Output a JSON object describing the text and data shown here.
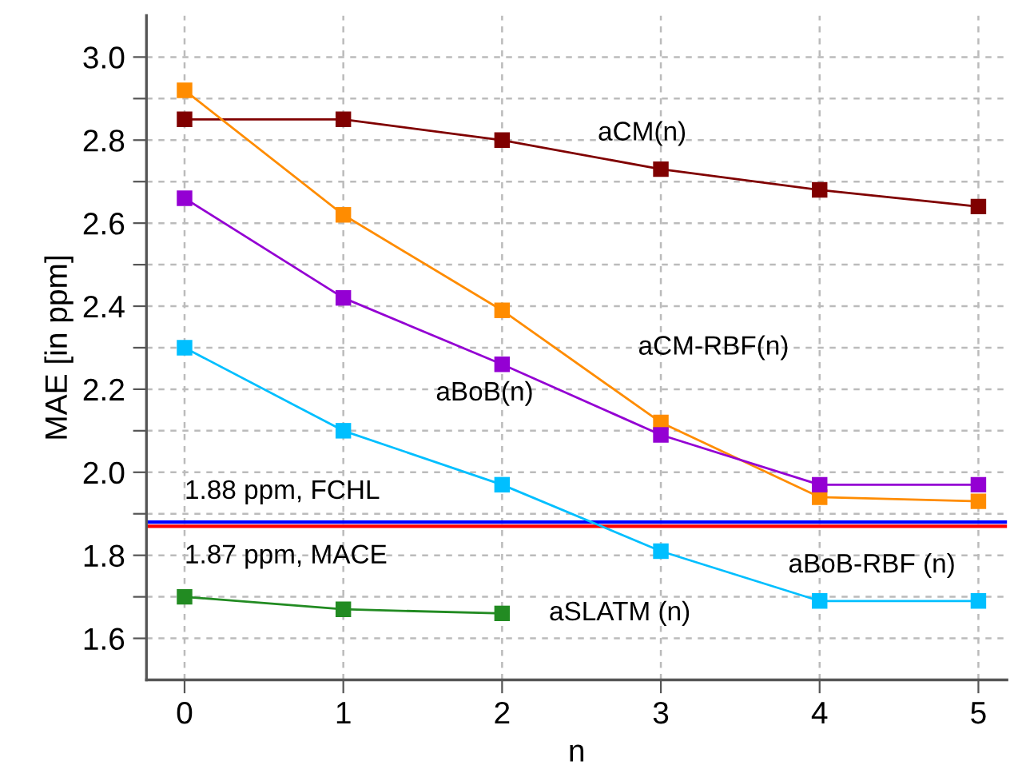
{
  "chart_data": {
    "type": "line",
    "xlabel": "n",
    "ylabel": "MAE [in ppm]",
    "x": [
      0,
      1,
      2,
      3,
      4,
      5
    ],
    "series": [
      {
        "name": "aCM(n)",
        "color": "#800000",
        "values": [
          2.85,
          2.85,
          2.8,
          2.73,
          2.68,
          2.64
        ]
      },
      {
        "name": "aCM-RBF(n)",
        "color": "#ff8c00",
        "values": [
          2.92,
          2.62,
          2.39,
          2.12,
          1.94,
          1.93
        ]
      },
      {
        "name": "aBoB(n)",
        "color": "#9400d3",
        "values": [
          2.66,
          2.42,
          2.26,
          2.09,
          1.97,
          1.97
        ]
      },
      {
        "name": "aBoB-RBF (n)",
        "color": "#00bfff",
        "values": [
          2.3,
          2.1,
          1.97,
          1.81,
          1.69,
          1.69
        ]
      },
      {
        "name": "aSLATM (n)",
        "color": "#228b22",
        "values": [
          1.7,
          1.67,
          1.66,
          null,
          null,
          null
        ]
      }
    ],
    "ref_lines": [
      {
        "axis": "y",
        "value": 1.88,
        "label": "1.88 ppm, FCHL",
        "color": "#0000ff"
      },
      {
        "axis": "y",
        "value": 1.87,
        "label": "1.87 ppm, MACE",
        "color": "#ff0000"
      }
    ],
    "xlim": [
      -0.24,
      5.18
    ],
    "ylim": [
      1.5,
      3.1
    ],
    "xticks": [
      0,
      1,
      2,
      3,
      4,
      5
    ],
    "yticks": [
      {
        "value": 1.6,
        "label": "1.6"
      },
      {
        "value": 1.7,
        "label": null
      },
      {
        "value": 1.8,
        "label": "1.8"
      },
      {
        "value": 1.9,
        "label": null
      },
      {
        "value": 2.0,
        "label": "2.0"
      },
      {
        "value": 2.1,
        "label": null
      },
      {
        "value": 2.2,
        "label": "2.2"
      },
      {
        "value": 2.3,
        "label": null
      },
      {
        "value": 2.4,
        "label": "2.4"
      },
      {
        "value": 2.5,
        "label": null
      },
      {
        "value": 2.6,
        "label": "2.6"
      },
      {
        "value": 2.7,
        "label": null
      },
      {
        "value": 2.8,
        "label": "2.8"
      },
      {
        "value": 2.9,
        "label": null
      },
      {
        "value": 3.0,
        "label": "3.0"
      }
    ],
    "grid": true,
    "legend": false,
    "line_style": "solid",
    "marker": "square"
  }
}
